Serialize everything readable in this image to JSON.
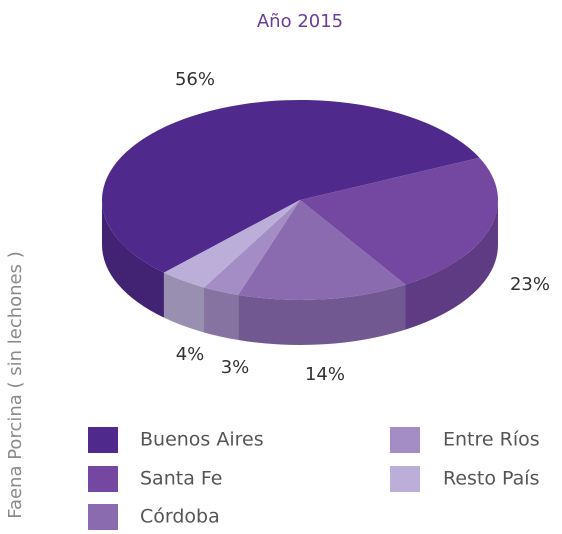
{
  "chart_data": {
    "type": "pie3d",
    "title": "Año 2015",
    "y_label": "Faena Porcina ( sin lechones )",
    "categories": [
      "Buenos Aires",
      "Santa Fe",
      "Córdoba",
      "Entre Ríos",
      "Resto País"
    ],
    "values": [
      56,
      23,
      14,
      3,
      4
    ],
    "value_labels": [
      "56%",
      "23%",
      "14%",
      "3%",
      "4%"
    ],
    "colors": [
      "#4f2a8c",
      "#7448a0",
      "#8a6bb0",
      "#a48cc4",
      "#bbaed8"
    ],
    "legend": "bottom"
  }
}
